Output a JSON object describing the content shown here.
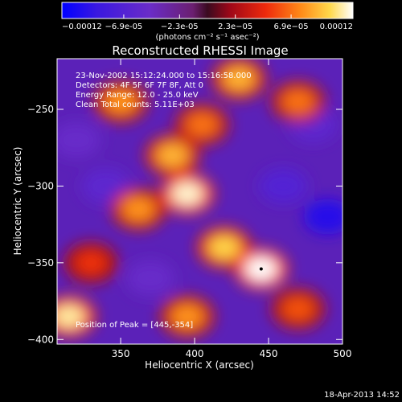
{
  "chart_data": {
    "type": "heatmap",
    "title": "Reconstructed RHESSI Image",
    "xlabel": "Heliocentric X (arcsec)",
    "ylabel": "Heliocentric Y (arcsec)",
    "xlim": [
      307,
      500
    ],
    "ylim": [
      -403,
      -217
    ],
    "x_ticks": [
      350,
      400,
      450,
      500
    ],
    "y_ticks": [
      -250,
      -300,
      -350,
      -400
    ],
    "colorbar": {
      "min": -0.00012,
      "max": 0.00012,
      "tick_values": [
        -0.00012,
        -6.9e-05,
        -2.3e-05,
        2.3e-05,
        6.9e-05,
        0.00012
      ],
      "tick_labels": [
        "-0.00012",
        "-6.9e-05",
        "-2.3e-05",
        "2.3e-05",
        "6.9e-05",
        "0.00012"
      ],
      "label": "(photons cm⁻² s⁻¹ asec⁻²)",
      "colormap": "blue-purple-red-yellow-white"
    },
    "annotations": [
      "23-Nov-2002 15:12:24.000 to 15:16:58.000",
      "Detectors: 4F 5F 6F 7F 8F, Att 0",
      "Energy Range: 12.0 - 25.0 keV",
      "Clean     Total counts: 5.11E+03"
    ],
    "peak_label": "Position of Peak = [445,-354]",
    "peak": [
      445,
      -354
    ],
    "hot_regions": [
      {
        "x": 395,
        "y": -305,
        "value": 0.000115
      },
      {
        "x": 385,
        "y": -280,
        "value": 9e-05
      },
      {
        "x": 420,
        "y": -340,
        "value": 0.0001
      },
      {
        "x": 445,
        "y": -354,
        "value": 0.00012
      },
      {
        "x": 362,
        "y": -315,
        "value": 8e-05
      },
      {
        "x": 405,
        "y": -260,
        "value": 7e-05
      },
      {
        "x": 315,
        "y": -385,
        "value": 0.00011
      },
      {
        "x": 350,
        "y": -245,
        "value": 8e-05
      },
      {
        "x": 430,
        "y": -230,
        "value": 9e-05
      },
      {
        "x": 470,
        "y": -245,
        "value": 7e-05
      },
      {
        "x": 395,
        "y": -385,
        "value": 8e-05
      },
      {
        "x": 470,
        "y": -380,
        "value": 6e-05
      },
      {
        "x": 330,
        "y": -350,
        "value": 5e-05
      }
    ],
    "cold_regions": [
      {
        "x": 490,
        "y": -320,
        "value": -0.0001
      },
      {
        "x": 340,
        "y": -300,
        "value": -6e-05
      },
      {
        "x": 460,
        "y": -300,
        "value": -7e-05
      },
      {
        "x": 370,
        "y": -360,
        "value": -5e-05
      },
      {
        "x": 480,
        "y": -260,
        "value": -6e-05
      },
      {
        "x": 320,
        "y": -270,
        "value": -5e-05
      }
    ]
  },
  "timestamp": "18-Apr-2013 14:52"
}
